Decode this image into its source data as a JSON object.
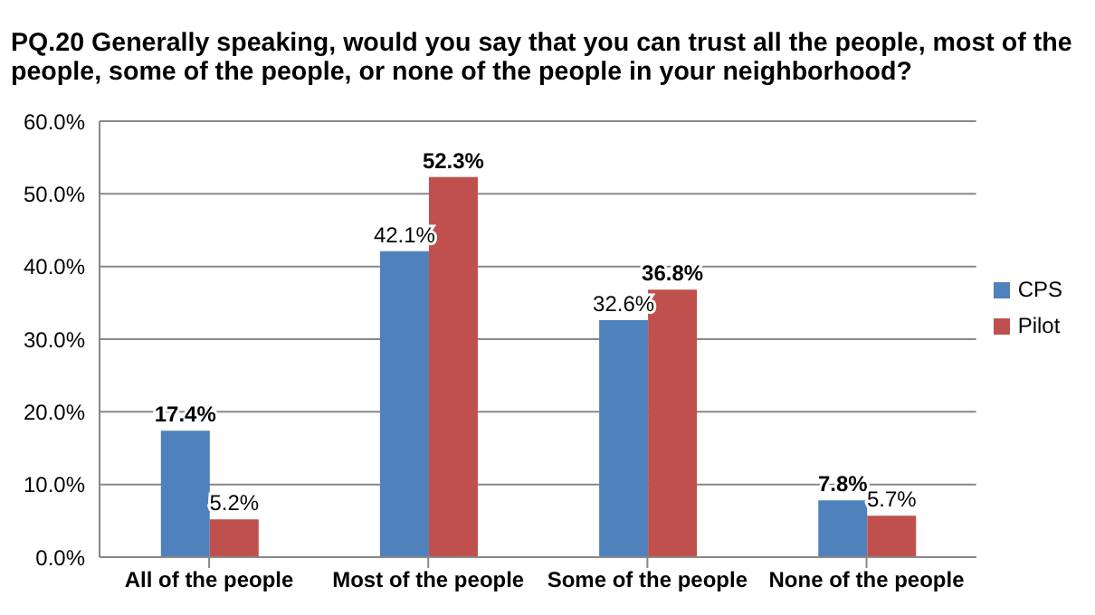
{
  "chart_data": {
    "type": "bar",
    "title": "PQ.20 Generally speaking, would you say that you can trust all the people, most of the people, some of the people, or none of the people in your neighborhood?",
    "categories": [
      "All of the people",
      "Most of the people",
      "Some of the people",
      "None of the people"
    ],
    "series": [
      {
        "name": "CPS",
        "color": "#4f81bd",
        "values": [
          17.4,
          42.1,
          32.6,
          7.8
        ],
        "value_labels": [
          "17.4%",
          "42.1%",
          "32.6%",
          "7.8%"
        ]
      },
      {
        "name": "Pilot",
        "color": "#c0504d",
        "values": [
          5.2,
          52.3,
          36.8,
          5.7
        ],
        "value_labels": [
          "5.2%",
          "52.3%",
          "36.8%",
          "5.7%"
        ]
      }
    ],
    "ylim": [
      0,
      60
    ],
    "yticks": [
      {
        "value": 0,
        "label": "0.0%"
      },
      {
        "value": 10,
        "label": "10.0%"
      },
      {
        "value": 20,
        "label": "20.0%"
      },
      {
        "value": 30,
        "label": "30.0%"
      },
      {
        "value": 40,
        "label": "40.0%"
      },
      {
        "value": 50,
        "label": "50.0%"
      },
      {
        "value": 60,
        "label": "60.0%"
      }
    ],
    "grid": "y",
    "legend": "right"
  }
}
